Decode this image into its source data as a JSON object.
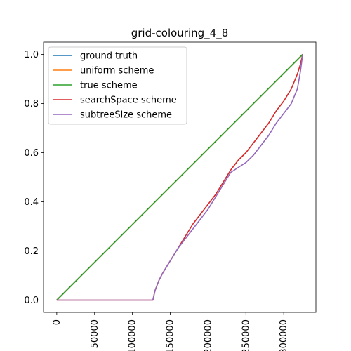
{
  "chart_data": {
    "type": "line",
    "title": "grid-colouring_4_8",
    "xlabel": "",
    "ylabel": "",
    "xlim": [
      -17500,
      342500
    ],
    "ylim": [
      -0.05,
      1.05
    ],
    "xticks": [
      0,
      50000,
      100000,
      150000,
      200000,
      250000,
      300000
    ],
    "xtick_labels": [
      "0",
      "50000",
      "100000",
      "150000",
      "200000",
      "250000",
      "300000"
    ],
    "xtick_rotation": 90,
    "yticks": [
      0.0,
      0.2,
      0.4,
      0.6,
      0.8,
      1.0
    ],
    "ytick_labels": [
      "0.0",
      "0.2",
      "0.4",
      "0.6",
      "0.8",
      "1.0"
    ],
    "grid": false,
    "legend_position": "upper-left",
    "series": [
      {
        "name": "ground truth",
        "color": "#1f77b4",
        "x": [
          0,
          325000
        ],
        "y": [
          0.0,
          1.0
        ]
      },
      {
        "name": "uniform scheme",
        "color": "#ff7f0e",
        "x": [
          0,
          325000
        ],
        "y": [
          0.0,
          1.0
        ]
      },
      {
        "name": "true scheme",
        "color": "#2ca02c",
        "x": [
          0,
          325000
        ],
        "y": [
          0.0,
          1.0
        ]
      },
      {
        "name": "searchSpace scheme",
        "color": "#d62728",
        "x": [
          0,
          127000,
          130000,
          135000,
          140000,
          150000,
          160000,
          170000,
          180000,
          190000,
          200000,
          210000,
          220000,
          230000,
          240000,
          250000,
          260000,
          270000,
          280000,
          290000,
          300000,
          310000,
          318000,
          322000,
          325000
        ],
        "y": [
          0.0,
          0.0,
          0.04,
          0.08,
          0.11,
          0.16,
          0.21,
          0.26,
          0.31,
          0.35,
          0.39,
          0.43,
          0.48,
          0.53,
          0.57,
          0.6,
          0.64,
          0.68,
          0.72,
          0.77,
          0.81,
          0.86,
          0.92,
          0.96,
          1.0
        ]
      },
      {
        "name": "subtreeSize scheme",
        "color": "#9467bd",
        "x": [
          0,
          127000,
          130000,
          135000,
          140000,
          150000,
          160000,
          170000,
          180000,
          190000,
          200000,
          210000,
          220000,
          230000,
          240000,
          250000,
          260000,
          270000,
          280000,
          290000,
          300000,
          310000,
          318000,
          322000,
          325000
        ],
        "y": [
          0.0,
          0.0,
          0.04,
          0.08,
          0.11,
          0.16,
          0.21,
          0.25,
          0.29,
          0.33,
          0.37,
          0.42,
          0.47,
          0.52,
          0.54,
          0.56,
          0.59,
          0.63,
          0.67,
          0.72,
          0.76,
          0.8,
          0.86,
          0.93,
          1.0
        ]
      }
    ]
  }
}
